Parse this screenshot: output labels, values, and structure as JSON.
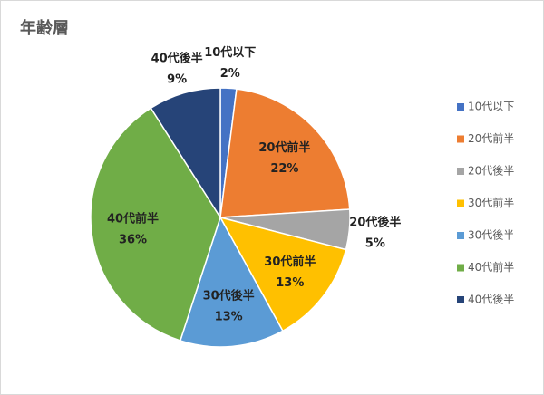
{
  "chart_data": {
    "type": "pie",
    "title": "年齢層",
    "categories": [
      "10代以下",
      "20代前半",
      "20代後半",
      "30代前半",
      "30代後半",
      "40代前半",
      "40代後半"
    ],
    "values": [
      2,
      22,
      5,
      13,
      13,
      36,
      9
    ],
    "value_labels": [
      "2%",
      "22%",
      "5%",
      "13%",
      "13%",
      "36%",
      "9%"
    ],
    "colors": [
      "#4472c4",
      "#ed7d31",
      "#a5a5a5",
      "#ffc000",
      "#5b9bd5",
      "#70ad47",
      "#264478"
    ],
    "legend": "right"
  }
}
